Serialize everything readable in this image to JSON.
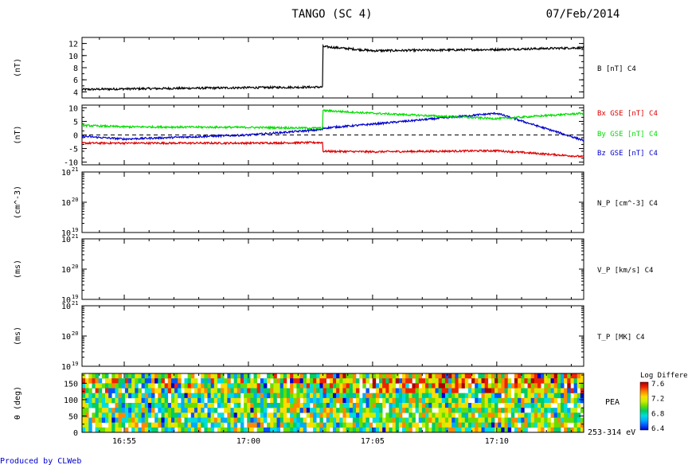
{
  "header": {
    "title": "TANGO (SC 4)",
    "date": "07/Feb/2014"
  },
  "footer": {
    "produced_by": "Produced by CLWeb",
    "produced_by_color": "#0000cc"
  },
  "colors": {
    "black": "#000000",
    "red": "#dd0000",
    "green": "#00dd00",
    "blue": "#0000cc"
  },
  "time_axis": {
    "tick_labels": [
      "16:55",
      "17:00",
      "17:05",
      "17:10"
    ]
  },
  "chart_data": [
    {
      "type": "line",
      "panel": "b-total",
      "ylabel": "(nT)",
      "ylim": [
        3,
        13
      ],
      "yticks": [
        "4",
        "6",
        "8",
        "10",
        "12"
      ],
      "ytick_values": [
        4,
        6,
        8,
        10,
        12
      ],
      "x": [
        "16:53",
        "16:55",
        "17:00",
        "17:03",
        "17:03",
        "17:05",
        "17:10",
        "17:13"
      ],
      "series": [
        {
          "name": "B [nT] C4",
          "color": "#000000",
          "values": [
            4.4,
            4.5,
            4.7,
            4.8,
            11.5,
            10.8,
            11.0,
            11.3
          ]
        }
      ]
    },
    {
      "type": "line",
      "panel": "b-components",
      "ylabel": "(nT)",
      "ylim": [
        -11,
        11
      ],
      "yticks": [
        "10",
        "5",
        "0",
        "-5",
        "-10"
      ],
      "ytick_values": [
        10,
        5,
        0,
        -5,
        -10
      ],
      "zero_line": "dashed",
      "x": [
        "16:53",
        "16:55",
        "17:00",
        "17:03",
        "17:03",
        "17:05",
        "17:10",
        "17:13"
      ],
      "series": [
        {
          "name": "Bx GSE [nT] C4",
          "color": "#dd0000",
          "values": [
            -3.0,
            -3.0,
            -3.0,
            -2.8,
            -6.0,
            -6.2,
            -5.8,
            -8.0
          ]
        },
        {
          "name": "By GSE [nT] C4",
          "color": "#00dd00",
          "values": [
            3.5,
            3.0,
            2.8,
            2.5,
            9.0,
            8.0,
            6.0,
            8.0
          ]
        },
        {
          "name": "Bz GSE [nT] C4",
          "color": "#0000cc",
          "values": [
            -0.5,
            -1.5,
            0.0,
            2.0,
            2.5,
            4.0,
            8.0,
            -2.0
          ]
        }
      ]
    },
    {
      "type": "line",
      "panel": "density",
      "ylabel": "(cm^-3)",
      "scale": "log",
      "ytick_exponents": [
        19,
        20,
        21
      ],
      "series": [
        {
          "name": "N_P [cm^-3] C4",
          "values": []
        }
      ]
    },
    {
      "type": "line",
      "panel": "velocity",
      "ylabel": "(ms)",
      "scale": "log",
      "ytick_exponents": [
        19,
        20,
        21
      ],
      "series": [
        {
          "name": "V_P [km/s] C4",
          "values": []
        }
      ]
    },
    {
      "type": "line",
      "panel": "temperature",
      "ylabel": "(ms)",
      "scale": "log",
      "ytick_exponents": [
        19,
        20,
        21
      ],
      "series": [
        {
          "name": "T_P [MK] C4",
          "values": []
        }
      ]
    },
    {
      "type": "heatmap",
      "panel": "pea",
      "ylabel": "θ (deg)",
      "ylim": [
        0,
        180
      ],
      "yticks": [
        "0",
        "50",
        "100",
        "150"
      ],
      "ytick_values": [
        0,
        50,
        100,
        150
      ],
      "label": "PEA",
      "energy_range": "253-314 eV",
      "colorbar": {
        "title": "Log Differential",
        "ticks": [
          "7.6",
          "7.2",
          "6.8",
          "6.4"
        ],
        "range": [
          6.4,
          7.6
        ]
      }
    }
  ]
}
